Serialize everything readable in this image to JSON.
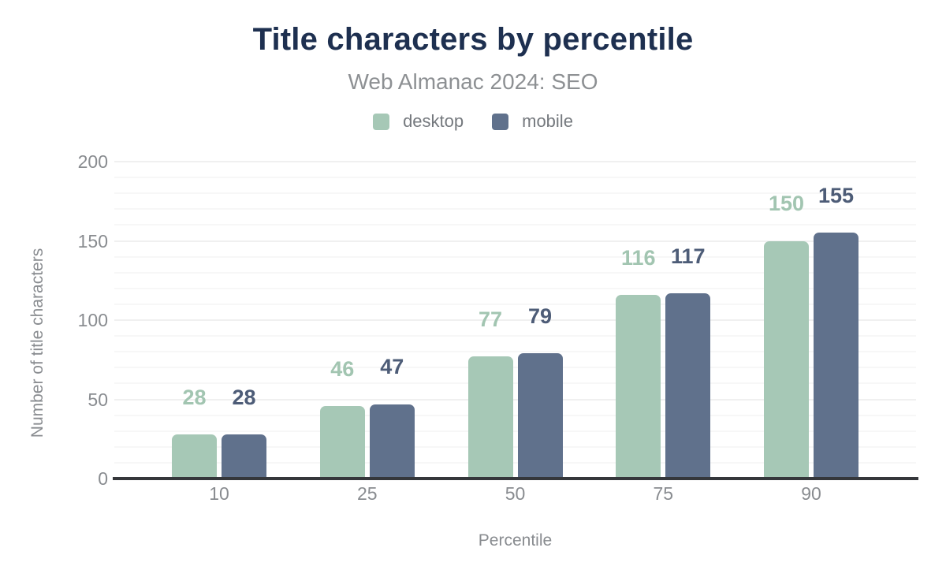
{
  "chart_data": {
    "type": "bar",
    "title": "Title characters by percentile",
    "subtitle": "Web Almanac 2024: SEO",
    "xlabel": "Percentile",
    "ylabel": "Number of title characters",
    "categories": [
      "10",
      "25",
      "50",
      "75",
      "90"
    ],
    "series": [
      {
        "name": "desktop",
        "color": "#a6c8b6",
        "label_color": "#a2c5b1",
        "values": [
          28,
          46,
          77,
          116,
          150
        ]
      },
      {
        "name": "mobile",
        "color": "#60718c",
        "label_color": "#4d5c77",
        "values": [
          28,
          47,
          79,
          117,
          155
        ]
      }
    ],
    "ylim": [
      0,
      200
    ],
    "y_ticks": [
      0,
      50,
      100,
      150,
      200
    ],
    "minor_grid_step": 10,
    "grid": "horizontal",
    "legend_position": "top",
    "data_labels_shown": true
  },
  "styles": {
    "title_color": "#1e3050",
    "subtitle_color": "#8d9093",
    "axis_text_color": "#898c90",
    "legend_text_color": "#75797e",
    "axis_line_color": "#35373b",
    "major_grid_color": "#f0f0f0",
    "minor_grid_color": "#f7f7f7",
    "background_color": "#ffffff"
  }
}
